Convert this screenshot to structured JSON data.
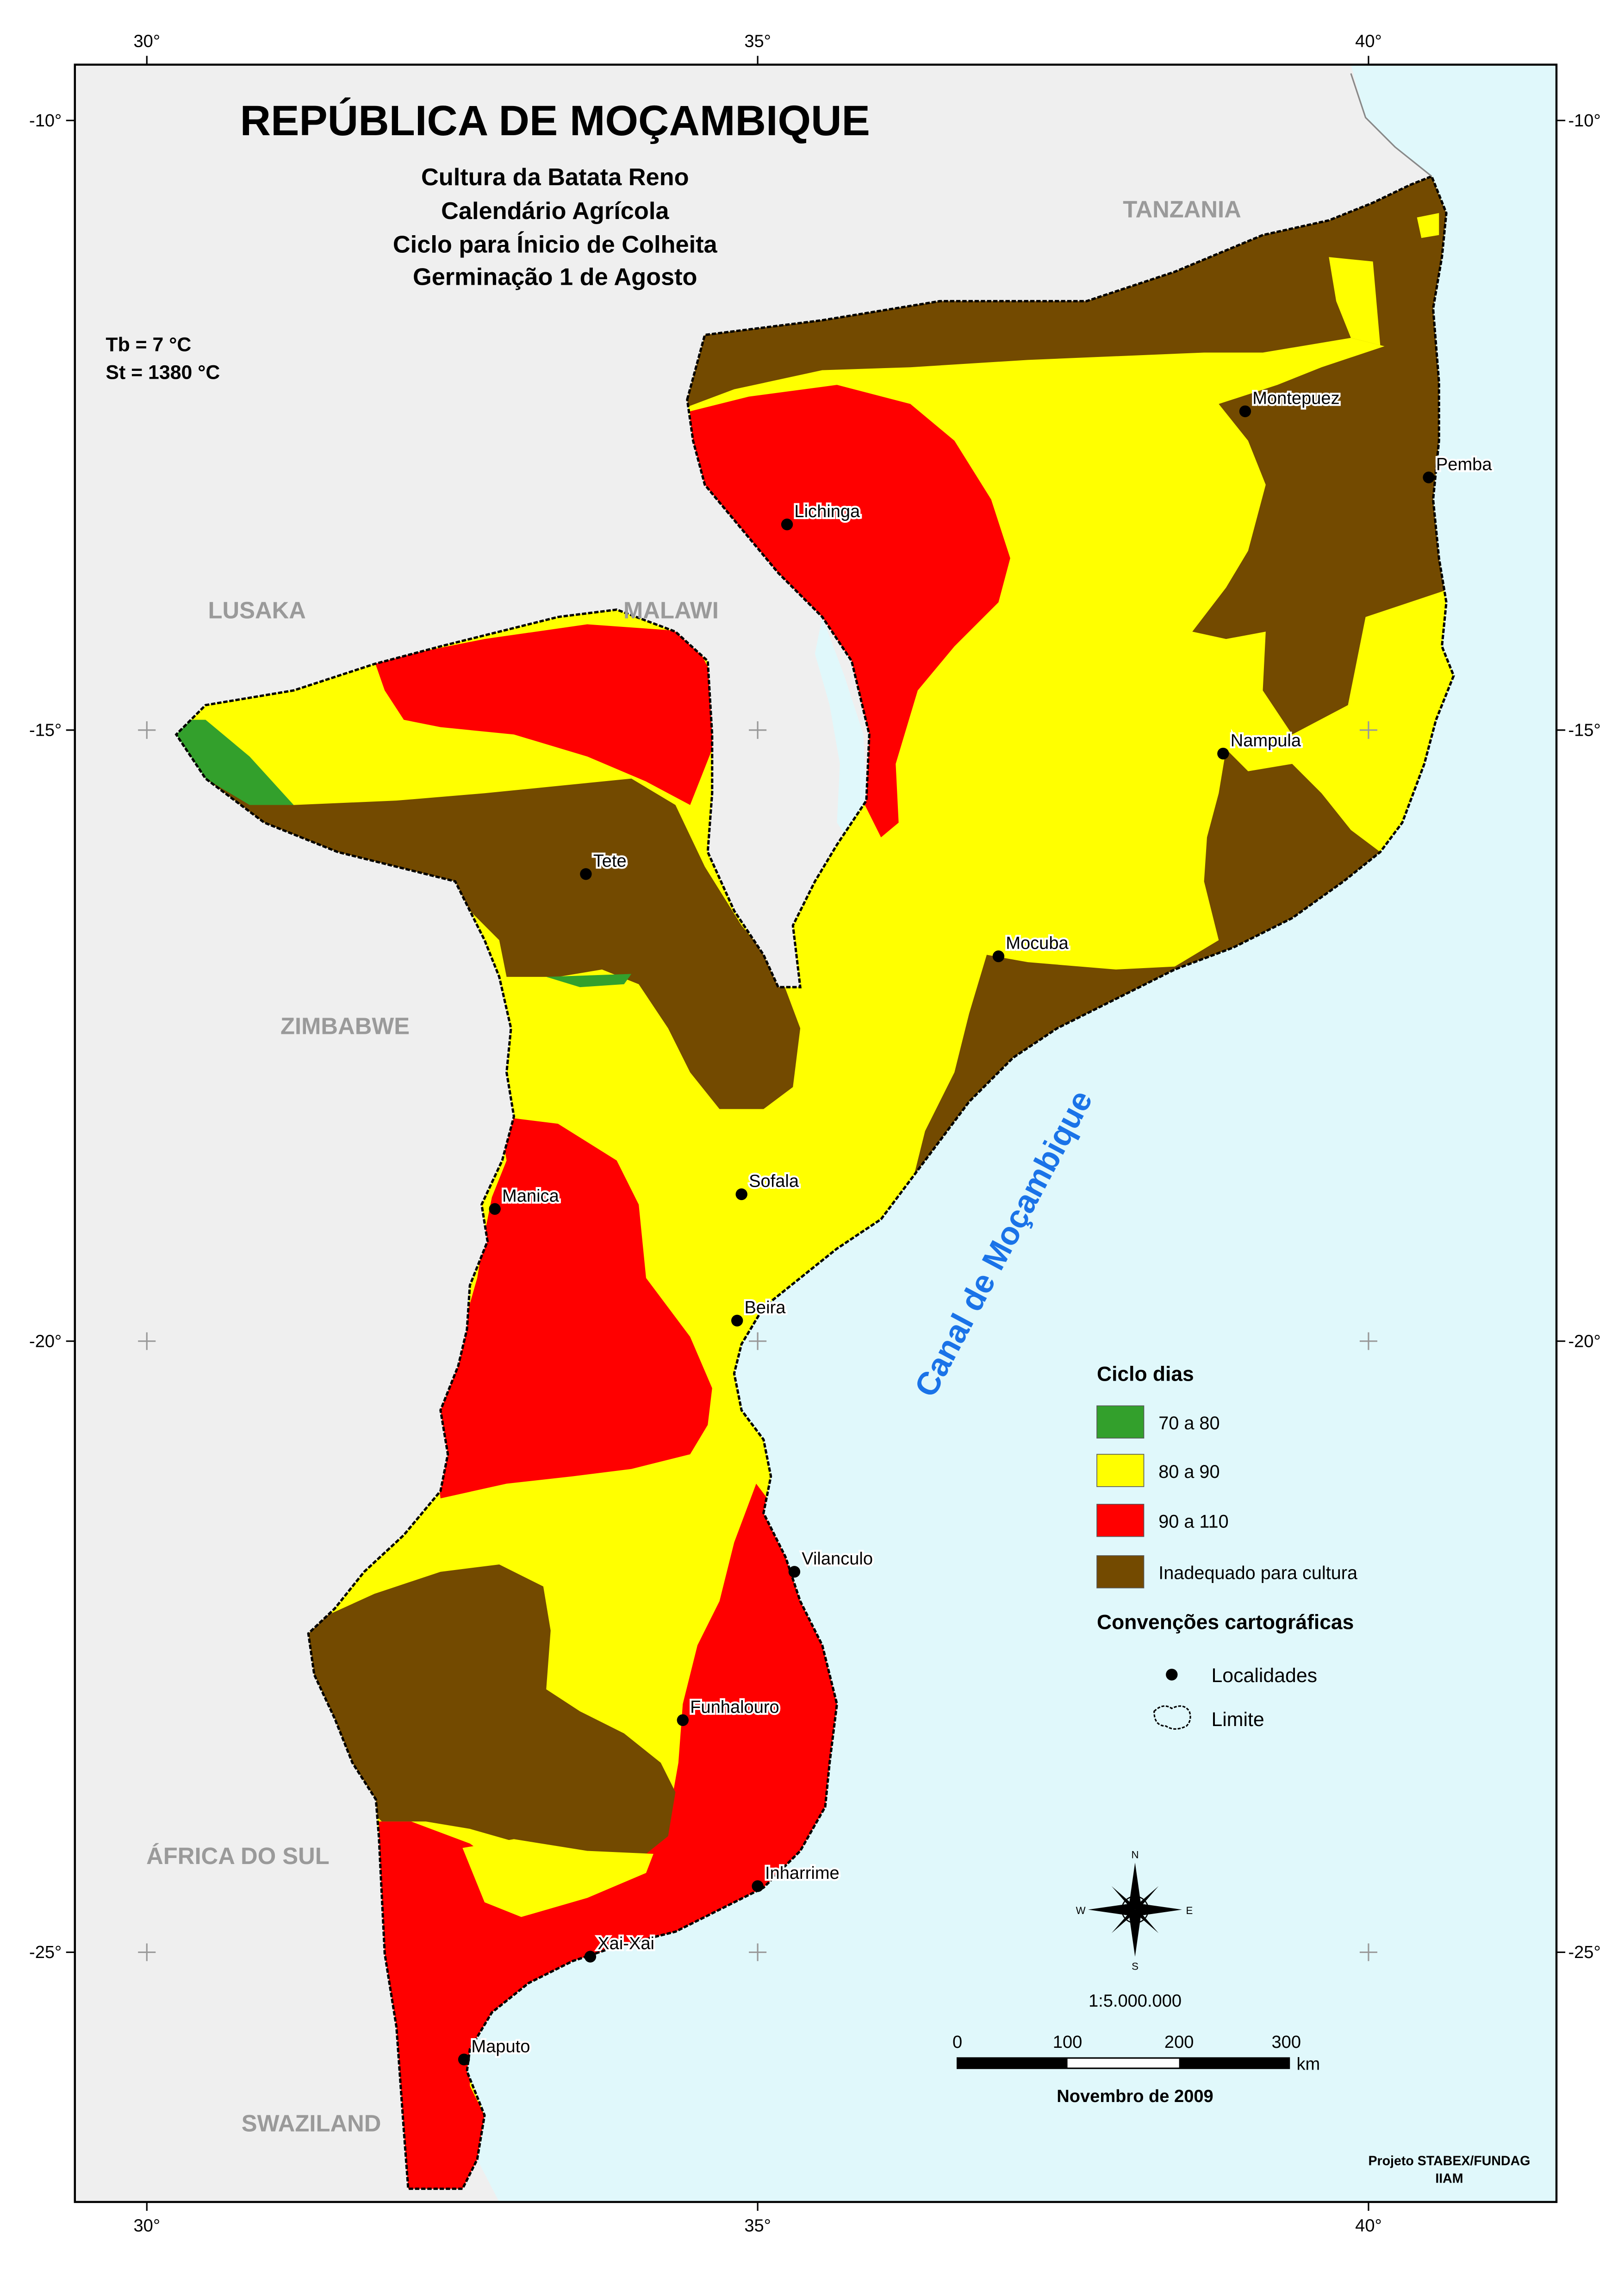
{
  "title": "REPÚBLICA DE MOÇAMBIQUE",
  "subtitle": [
    "Cultura da Batata Reno",
    "Calendário Agrícola",
    "Ciclo para Ínicio de Colheita",
    "Germinação 1 de Agosto"
  ],
  "params": {
    "tb": "Tb = 7 °C",
    "st": "St =  1380 °C"
  },
  "lon_ticks": [
    "30°",
    "35°",
    "40°"
  ],
  "lat_ticks": [
    "-10°",
    "-15°",
    "-20°",
    "-25°"
  ],
  "countries": {
    "tanzania": "TANZANIA",
    "malawi": "MALAWI",
    "lusaka": "LUSAKA",
    "zimbabwe": "ZIMBABWE",
    "africa_do_sul": "ÁFRICA DO SUL",
    "swaziland": "SWAZILAND"
  },
  "sea_label": "Canal de Moçambique",
  "localities": [
    "Montepuez",
    "Pemba",
    "Lichinga",
    "Nampula",
    "Tete",
    "Mocuba",
    "Sofala",
    "Manica",
    "Beira",
    "Vilanculo",
    "Funhalouro",
    "Inharrime",
    "Xai-Xai",
    "Maputo"
  ],
  "legend": {
    "title": "Ciclo dias",
    "classes": [
      {
        "label": "70 a 80",
        "color": "#33a02c"
      },
      {
        "label": "80 a 90",
        "color": "#ffff00"
      },
      {
        "label": "90 a 110",
        "color": "#ff0000"
      },
      {
        "label": "Inadequado para cultura",
        "color": "#734a00"
      }
    ],
    "conventions_title": "Convenções cartográficas",
    "localidades": "Localidades",
    "limite": "Limite"
  },
  "compass": {
    "n": "N",
    "s": "S",
    "e": "E",
    "w": "W"
  },
  "scale": {
    "ratio": "1:5.000.000",
    "ticks": [
      "0",
      "100",
      "200",
      "300"
    ],
    "unit": "km"
  },
  "date": "Novembro de 2009",
  "credits": [
    "Projeto STABEX/FUNDAG",
    "IIAM"
  ],
  "colors": {
    "ocean": "#e0f8fb",
    "land": "#efefef",
    "green": "#33a02c",
    "yellow": "#ffff00",
    "red": "#ff0000",
    "brown": "#734a00"
  }
}
